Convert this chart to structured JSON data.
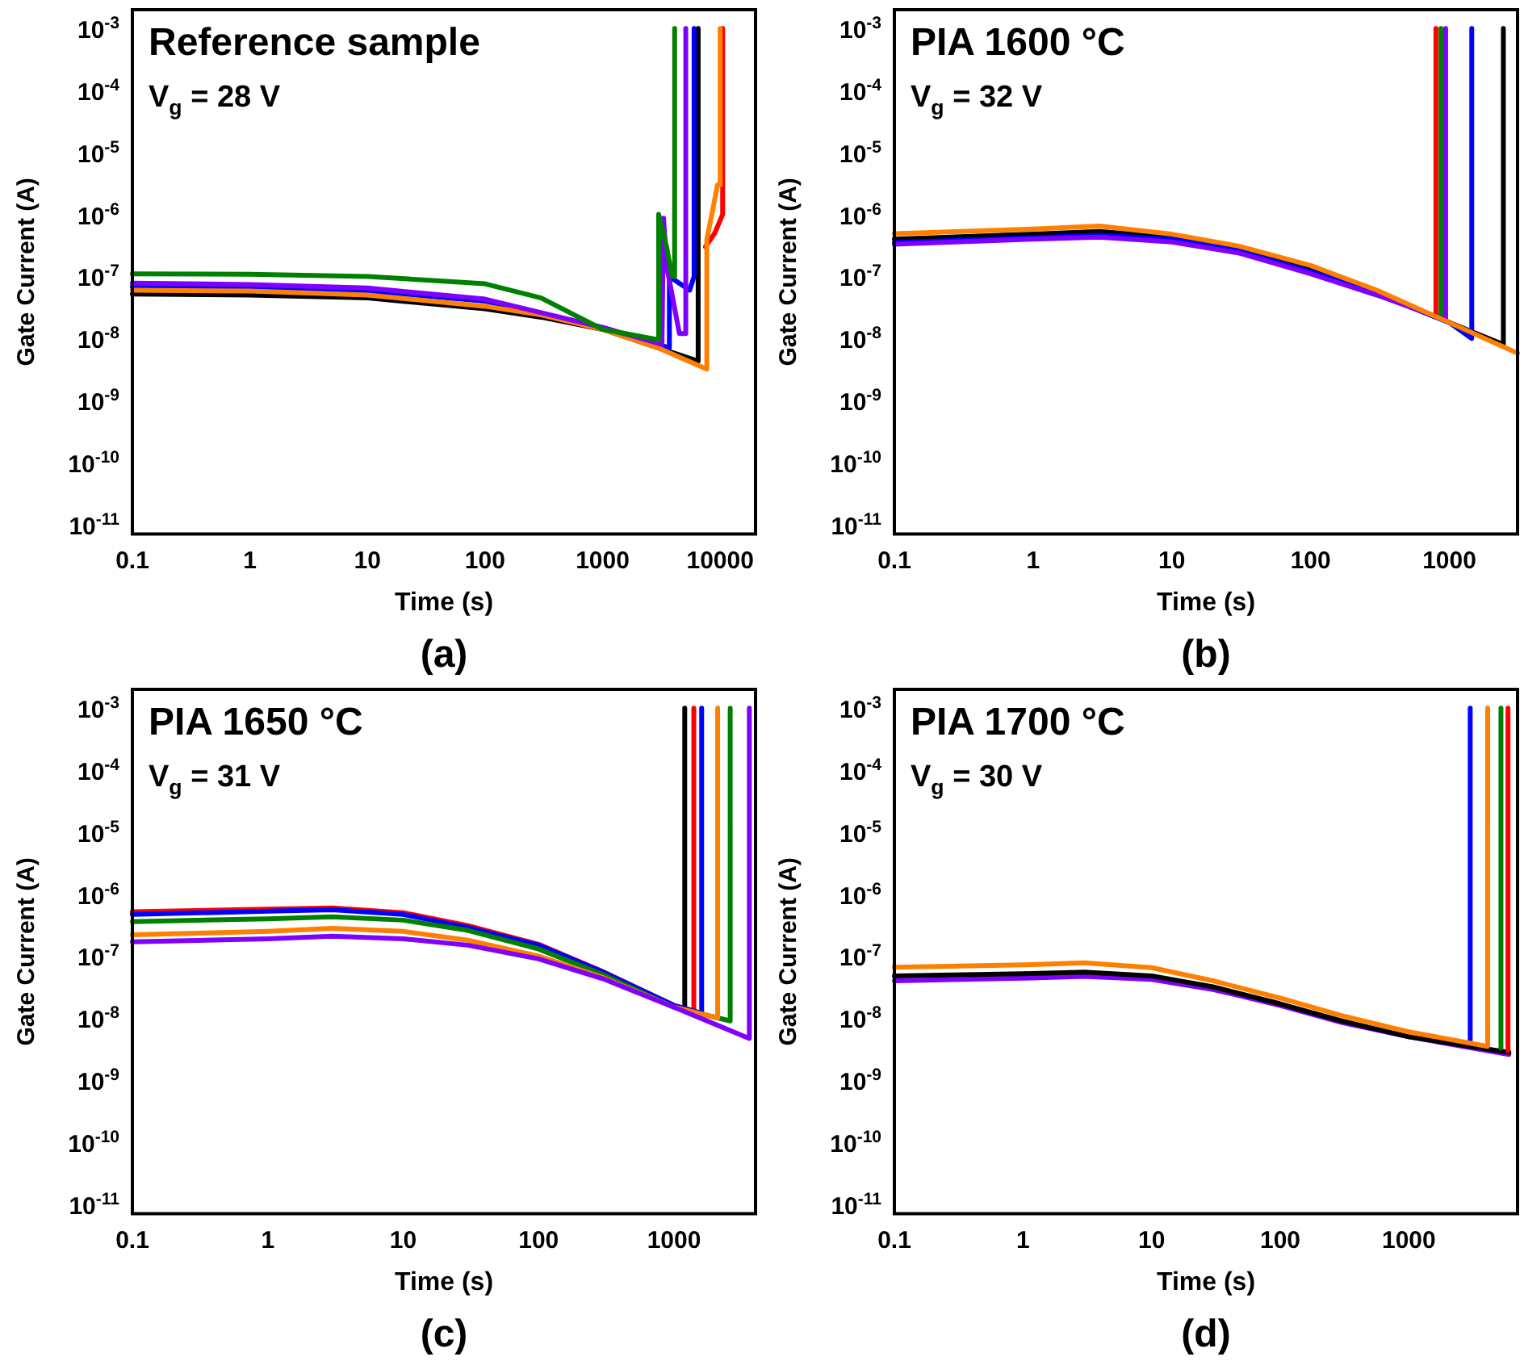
{
  "chart_data": [
    {
      "type": "line",
      "title": "Reference sample",
      "subtitle": "V$_{g}$ = 28 V",
      "xlabel": "Time (s)",
      "ylabel": "Gate Current (A)",
      "annotations": [
        "(a)"
      ],
      "log": "xy",
      "marker": "none",
      "legend": false,
      "line_style": "solid",
      "xlim": [
        0.1,
        20000
      ],
      "xticks": [
        0.1,
        1,
        10,
        100,
        1000,
        10000
      ],
      "ylim": [
        7e-12,
        0.002
      ],
      "yticks": [
        {
          "value": 0.001,
          "label": "10$^{-3}$"
        },
        {
          "value": 0.0001,
          "label": "10$^{-4}$"
        },
        {
          "value": 1e-05,
          "label": "10$^{-5}$"
        },
        {
          "value": 1e-06,
          "label": "10$^{-6}$"
        },
        {
          "value": 1e-07,
          "label": "10$^{-7}$"
        },
        {
          "value": 1e-08,
          "label": "10$^{-8}$"
        },
        {
          "value": 1e-09,
          "label": "10$^{-9}$"
        },
        {
          "value": 1e-10,
          "label": "10$^{-10}$"
        },
        {
          "value": 1e-11,
          "label": "10$^{-11}$"
        }
      ],
      "series": [
        {
          "color": "#ff0000",
          "x": [
            7500,
            9000,
            10500,
            10500
          ],
          "values": [
            3e-07,
            5e-07,
            1e-06,
            0.001
          ]
        },
        {
          "color": "#000000",
          "x": [
            0.1,
            1,
            10,
            100,
            300,
            1000,
            3000,
            6500,
            6500
          ],
          "values": [
            5.2e-08,
            5e-08,
            4.5e-08,
            3e-08,
            2.2e-08,
            1.4e-08,
            7e-09,
            4.3e-09,
            0.001
          ]
        },
        {
          "color": "#0000ff",
          "x": [
            0.1,
            1,
            10,
            100,
            1000,
            3000,
            3700,
            3700,
            5500,
            6000,
            6000
          ],
          "values": [
            6.8e-08,
            6.5e-08,
            5.8e-08,
            4e-08,
            1.5e-08,
            8e-09,
            7e-09,
            1e-07,
            6e-08,
            1e-07,
            0.001
          ]
        },
        {
          "color": "#ff8000",
          "x": [
            0.1,
            1,
            10,
            100,
            300,
            1000,
            3000,
            7700,
            7700,
            8500,
            9500,
            10000,
            10000
          ],
          "values": [
            6e-08,
            5.8e-08,
            5e-08,
            3.3e-08,
            2.4e-08,
            1.4e-08,
            7e-09,
            3.2e-09,
            4e-07,
            1e-06,
            3e-06,
            3e-06,
            0.001
          ]
        },
        {
          "color": "#8000ff",
          "x": [
            0.1,
            1,
            10,
            100,
            1000,
            3200,
            3300,
            3500,
            4500,
            5100,
            5100
          ],
          "values": [
            7.8e-08,
            7.4e-08,
            6.5e-08,
            4.3e-08,
            1.5e-08,
            8e-09,
            8.7e-07,
            1.5e-07,
            1.2e-08,
            1.2e-08,
            0.001
          ]
        },
        {
          "color": "#008000",
          "x": [
            0.1,
            1,
            10,
            100,
            300,
            1000,
            3000,
            3000,
            3500,
            3900,
            4100,
            4100
          ],
          "values": [
            1.1e-07,
            1.08e-07,
            1e-07,
            7.6e-08,
            4.5e-08,
            1.4e-08,
            9.5e-09,
            1e-06,
            3e-07,
            1e-07,
            1e-07,
            0.001
          ]
        }
      ]
    },
    {
      "type": "line",
      "title": "PIA 1600 °C",
      "subtitle": "V$_{g}$ = 32 V",
      "xlabel": "Time (s)",
      "ylabel": "Gate Current (A)",
      "annotations": [
        "(b)"
      ],
      "log": "xy",
      "marker": "none",
      "legend": false,
      "line_style": "solid",
      "xlim": [
        0.1,
        3100
      ],
      "xticks": [
        0.1,
        1,
        10,
        100,
        1000
      ],
      "ylim": [
        7e-12,
        0.002
      ],
      "yticks": [
        {
          "value": 0.001,
          "label": "10$^{-3}$"
        },
        {
          "value": 0.0001,
          "label": "10$^{-4}$"
        },
        {
          "value": 1e-05,
          "label": "10$^{-5}$"
        },
        {
          "value": 1e-06,
          "label": "10$^{-6}$"
        },
        {
          "value": 1e-07,
          "label": "10$^{-7}$"
        },
        {
          "value": 1e-08,
          "label": "10$^{-8}$"
        },
        {
          "value": 1e-09,
          "label": "10$^{-9}$"
        },
        {
          "value": 1e-10,
          "label": "10$^{-10}$"
        },
        {
          "value": 1e-11,
          "label": "10$^{-11}$"
        }
      ],
      "series": [
        {
          "color": "#ff0000",
          "x": [
            800,
            800
          ],
          "values": [
            2.4e-08,
            0.001
          ]
        },
        {
          "color": "#008000",
          "x": [
            870,
            870
          ],
          "values": [
            2.2e-08,
            0.001
          ]
        },
        {
          "color": "#000000",
          "x": [
            0.1,
            1,
            3,
            10,
            30,
            100,
            300,
            1000,
            2450,
            2450
          ],
          "values": [
            4e-07,
            4.8e-07,
            5.3e-07,
            4.3e-07,
            2.8e-07,
            1.3e-07,
            5.5e-08,
            1.8e-08,
            8e-09,
            0.001
          ]
        },
        {
          "color": "#0000ff",
          "x": [
            0.1,
            1,
            3,
            10,
            30,
            100,
            300,
            1000,
            1450,
            1450
          ],
          "values": [
            3.5e-07,
            4.2e-07,
            4.6e-07,
            4e-07,
            2.6e-07,
            1.2e-07,
            5.3e-08,
            1.8e-08,
            1e-08,
            0.001
          ]
        },
        {
          "color": "#8000ff",
          "x": [
            0.1,
            1,
            3,
            10,
            30,
            100,
            300,
            940,
            940
          ],
          "values": [
            3.3e-07,
            4e-07,
            4.3e-07,
            3.6e-07,
            2.4e-07,
            1.1e-07,
            5e-08,
            2e-08,
            0.001
          ]
        },
        {
          "color": "#ff8000",
          "x": [
            0.1,
            1,
            3,
            10,
            30,
            100,
            300,
            1000,
            3100
          ],
          "values": [
            4.9e-07,
            5.8e-07,
            6.5e-07,
            4.8e-07,
            3.1e-07,
            1.5e-07,
            6e-08,
            1.8e-08,
            5.8e-09
          ]
        }
      ]
    },
    {
      "type": "line",
      "title": "PIA 1650 °C",
      "subtitle": "V$_{g}$ = 31 V",
      "xlabel": "Time (s)",
      "ylabel": "Gate Current (A)",
      "annotations": [
        "(c)"
      ],
      "log": "xy",
      "marker": "none",
      "legend": false,
      "line_style": "solid",
      "xlim": [
        0.1,
        4000
      ],
      "xticks": [
        0.1,
        1,
        10,
        100,
        1000
      ],
      "ylim": [
        7e-12,
        0.002
      ],
      "yticks": [
        {
          "value": 0.001,
          "label": "10$^{-3}$"
        },
        {
          "value": 0.0001,
          "label": "10$^{-4}$"
        },
        {
          "value": 1e-05,
          "label": "10$^{-5}$"
        },
        {
          "value": 1e-06,
          "label": "10$^{-6}$"
        },
        {
          "value": 1e-07,
          "label": "10$^{-7}$"
        },
        {
          "value": 1e-08,
          "label": "10$^{-8}$"
        },
        {
          "value": 1e-09,
          "label": "10$^{-9}$"
        },
        {
          "value": 1e-10,
          "label": "10$^{-10}$"
        },
        {
          "value": 1e-11,
          "label": "10$^{-11}$"
        }
      ],
      "series": [
        {
          "color": "#000000",
          "x": [
            1200,
            1200
          ],
          "values": [
            1.4e-08,
            0.001
          ]
        },
        {
          "color": "#ff0000",
          "x": [
            0.1,
            1,
            3,
            10,
            30,
            100,
            300,
            1000,
            1400,
            1400
          ],
          "values": [
            5.2e-07,
            5.7e-07,
            6e-07,
            5e-07,
            3.1e-07,
            1.55e-07,
            5.6e-08,
            1.6e-08,
            1.3e-08,
            0.001
          ]
        },
        {
          "color": "#0000ff",
          "x": [
            0.1,
            1,
            3,
            10,
            30,
            100,
            300,
            1000,
            1600,
            1600
          ],
          "values": [
            4.7e-07,
            5.3e-07,
            5.6e-07,
            4.7e-07,
            2.9e-07,
            1.5e-07,
            5.5e-08,
            1.6e-08,
            1.2e-08,
            0.001
          ]
        },
        {
          "color": "#008000",
          "x": [
            0.1,
            1,
            3,
            10,
            30,
            100,
            300,
            1000,
            2600,
            2600
          ],
          "values": [
            3.6e-07,
            4e-07,
            4.3e-07,
            3.8e-07,
            2.6e-07,
            1.3e-07,
            5e-08,
            1.5e-08,
            9e-09,
            0.001
          ]
        },
        {
          "color": "#ff8000",
          "x": [
            0.1,
            1,
            3,
            10,
            30,
            100,
            300,
            1000,
            2100,
            2100
          ],
          "values": [
            2.2e-07,
            2.5e-07,
            2.8e-07,
            2.5e-07,
            1.8e-07,
            1e-07,
            4.5e-08,
            1.5e-08,
            1e-08,
            0.001
          ]
        },
        {
          "color": "#8000ff",
          "x": [
            0.1,
            1,
            3,
            10,
            30,
            100,
            300,
            1000,
            3600,
            3600
          ],
          "values": [
            1.7e-07,
            1.9e-07,
            2.1e-07,
            1.9e-07,
            1.5e-07,
            9e-08,
            4.3e-08,
            1.5e-08,
            4.7e-09,
            0.001
          ]
        }
      ]
    },
    {
      "type": "line",
      "title": "PIA 1700 °C",
      "subtitle": "V$_{g}$ = 30 V",
      "xlabel": "Time (s)",
      "ylabel": "Gate Current (A)",
      "annotations": [
        "(d)"
      ],
      "log": "xy",
      "marker": "none",
      "legend": false,
      "line_style": "solid",
      "xlim": [
        0.1,
        7000
      ],
      "xticks": [
        0.1,
        1,
        10,
        100,
        1000
      ],
      "ylim": [
        7e-12,
        0.002
      ],
      "yticks": [
        {
          "value": 0.001,
          "label": "10$^{-3}$"
        },
        {
          "value": 0.0001,
          "label": "10$^{-4}$"
        },
        {
          "value": 1e-05,
          "label": "10$^{-5}$"
        },
        {
          "value": 1e-06,
          "label": "10$^{-6}$"
        },
        {
          "value": 1e-07,
          "label": "10$^{-7}$"
        },
        {
          "value": 1e-08,
          "label": "10$^{-8}$"
        },
        {
          "value": 1e-09,
          "label": "10$^{-9}$"
        },
        {
          "value": 1e-10,
          "label": "10$^{-10}$"
        },
        {
          "value": 1e-11,
          "label": "10$^{-11}$"
        }
      ],
      "series": [
        {
          "color": "#8000ff",
          "x": [
            0.1,
            1,
            3,
            10,
            30,
            100,
            300,
            1000,
            6000
          ],
          "values": [
            4e-08,
            4.4e-08,
            4.7e-08,
            4.2e-08,
            2.9e-08,
            1.6e-08,
            8.5e-09,
            5e-09,
            2.6e-09
          ]
        },
        {
          "color": "#000000",
          "x": [
            0.1,
            1,
            3,
            10,
            30,
            100,
            300,
            1000,
            6000
          ],
          "values": [
            4.8e-08,
            5.2e-08,
            5.5e-08,
            4.8e-08,
            3.2e-08,
            1.7e-08,
            9e-09,
            5e-09,
            2.8e-09
          ]
        },
        {
          "color": "#ff0000",
          "x": [
            5900,
            5900
          ],
          "values": [
            3e-09,
            0.001
          ]
        },
        {
          "color": "#008000",
          "x": [
            5200,
            5200
          ],
          "values": [
            3.3e-09,
            0.001
          ]
        },
        {
          "color": "#0000ff",
          "x": [
            3000,
            3000
          ],
          "values": [
            4e-09,
            0.001
          ]
        },
        {
          "color": "#ff8000",
          "x": [
            0.1,
            1,
            3,
            10,
            30,
            100,
            300,
            1000,
            4100,
            4100
          ],
          "values": [
            6.6e-08,
            7.2e-08,
            7.8e-08,
            6.5e-08,
            4e-08,
            2.1e-08,
            1.1e-08,
            6e-09,
            3.5e-09,
            0.001
          ]
        }
      ]
    }
  ]
}
